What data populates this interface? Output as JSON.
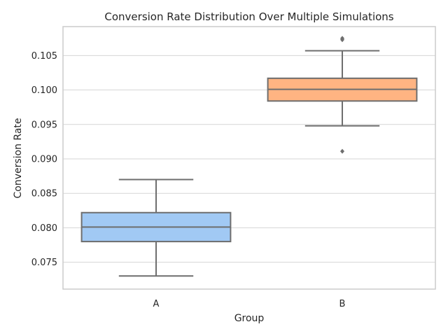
{
  "chart_data": {
    "type": "box",
    "title": "Conversion Rate Distribution Over Multiple Simulations",
    "xlabel": "Group",
    "ylabel": "Conversion Rate",
    "ylim": [
      0.0711,
      0.1092
    ],
    "yticks": [
      "0.075",
      "0.080",
      "0.085",
      "0.090",
      "0.095",
      "0.100",
      "0.105"
    ],
    "grid": true,
    "categories": [
      "A",
      "B"
    ],
    "boxes": [
      {
        "category": "A",
        "color": "#a1c9f4",
        "whisker_low": 0.073,
        "q1": 0.078,
        "median": 0.0801,
        "q3": 0.0822,
        "whisker_high": 0.087,
        "outliers": []
      },
      {
        "category": "B",
        "color": "#ffb482",
        "whisker_low": 0.0948,
        "q1": 0.0984,
        "median": 0.1001,
        "q3": 0.1017,
        "whisker_high": 0.1057,
        "outliers": [
          0.0911,
          0.1073,
          0.1075
        ]
      }
    ]
  }
}
